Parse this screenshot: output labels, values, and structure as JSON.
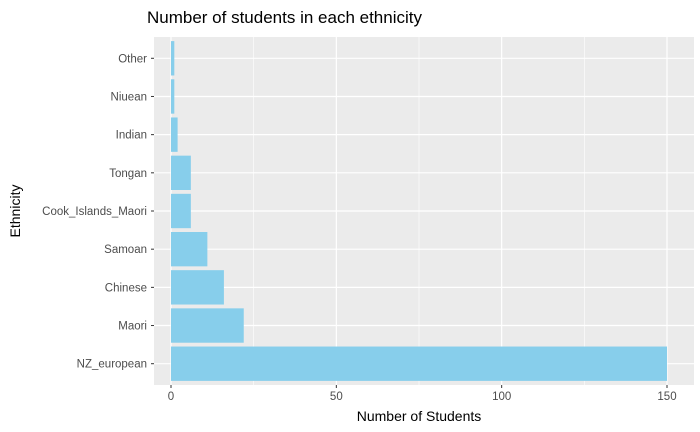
{
  "chart_data": {
    "type": "bar",
    "orientation": "horizontal",
    "title": "Number of students in each ethnicity",
    "xlabel": "Number of Students",
    "ylabel": "Ethnicity",
    "categories": [
      "NZ_european",
      "Maori",
      "Chinese",
      "Samoan",
      "Cook_Islands_Maori",
      "Tongan",
      "Indian",
      "Niuean",
      "Other"
    ],
    "values": [
      150,
      22,
      16,
      11,
      6,
      6,
      2,
      1,
      1
    ],
    "xlim": [
      0,
      150
    ],
    "xticks": [
      "0",
      "50",
      "100",
      "150"
    ],
    "grid": true,
    "bar_color": "#87ceeb",
    "panel_background": "#ebebeb",
    "grid_color": "#ffffff"
  }
}
